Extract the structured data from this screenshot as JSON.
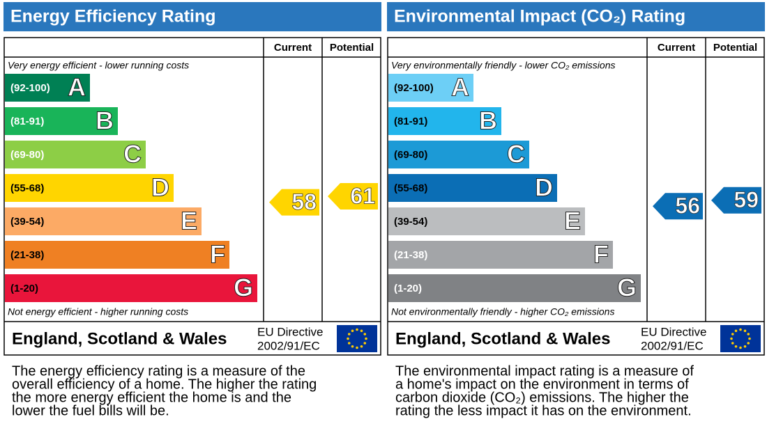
{
  "panels": [
    {
      "title": "Energy Efficiency Rating",
      "columns": [
        "Current",
        "Potential"
      ],
      "top_note": "Very energy efficient - lower running costs",
      "bottom_note": "Not energy efficient - higher running costs",
      "bands": [
        {
          "range": "(92-100)",
          "letter": "A",
          "color": "#008054",
          "label_color": "#ffffff"
        },
        {
          "range": "(81-91)",
          "letter": "B",
          "color": "#19b459",
          "label_color": "#ffffff"
        },
        {
          "range": "(69-80)",
          "letter": "C",
          "color": "#8dce46",
          "label_color": "#ffffff"
        },
        {
          "range": "(55-68)",
          "letter": "D",
          "color": "#ffd500",
          "label_color": "#000000"
        },
        {
          "range": "(39-54)",
          "letter": "E",
          "color": "#fcaa65",
          "label_color": "#000000"
        },
        {
          "range": "(21-38)",
          "letter": "F",
          "color": "#ef8023",
          "label_color": "#000000"
        },
        {
          "range": "(1-20)",
          "letter": "G",
          "color": "#e9153b",
          "label_color": "#000000"
        }
      ],
      "current": 58,
      "potential": 61,
      "region": "England, Scotland & Wales",
      "directive": [
        "EU Directive",
        "2002/91/EC"
      ],
      "description": [
        "The energy efficiency rating is a measure of the",
        "overall efficiency of a home. The higher the rating",
        "the more energy efficient the home is and the",
        "lower the fuel bills will be."
      ]
    },
    {
      "title": "Environmental Impact (CO₂) Rating",
      "columns": [
        "Current",
        "Potential"
      ],
      "top_note": "Very environmentally friendly - lower CO₂ emissions",
      "bottom_note": "Not environmentally friendly - higher CO₂ emissions",
      "bands": [
        {
          "range": "(92-100)",
          "letter": "A",
          "color": "#6dcff6",
          "label_color": "#000000"
        },
        {
          "range": "(81-91)",
          "letter": "B",
          "color": "#22b5ec",
          "label_color": "#000000"
        },
        {
          "range": "(69-80)",
          "letter": "C",
          "color": "#1c9ad6",
          "label_color": "#000000"
        },
        {
          "range": "(55-68)",
          "letter": "D",
          "color": "#0b6eb5",
          "label_color": "#000000"
        },
        {
          "range": "(39-54)",
          "letter": "E",
          "color": "#bbbdbf",
          "label_color": "#000000"
        },
        {
          "range": "(21-38)",
          "letter": "F",
          "color": "#a3a5a8",
          "label_color": "#ffffff"
        },
        {
          "range": "(1-20)",
          "letter": "G",
          "color": "#808285",
          "label_color": "#ffffff"
        }
      ],
      "current": 56,
      "potential": 59,
      "region": "England, Scotland & Wales",
      "directive": [
        "EU Directive",
        "2002/91/EC"
      ],
      "description": [
        "The environmental impact rating is a measure of",
        "a home's impact on the environment in terms of",
        "carbon dioxide (CO₂) emissions. The higher the",
        "rating the less impact it has on the environment."
      ]
    }
  ]
}
